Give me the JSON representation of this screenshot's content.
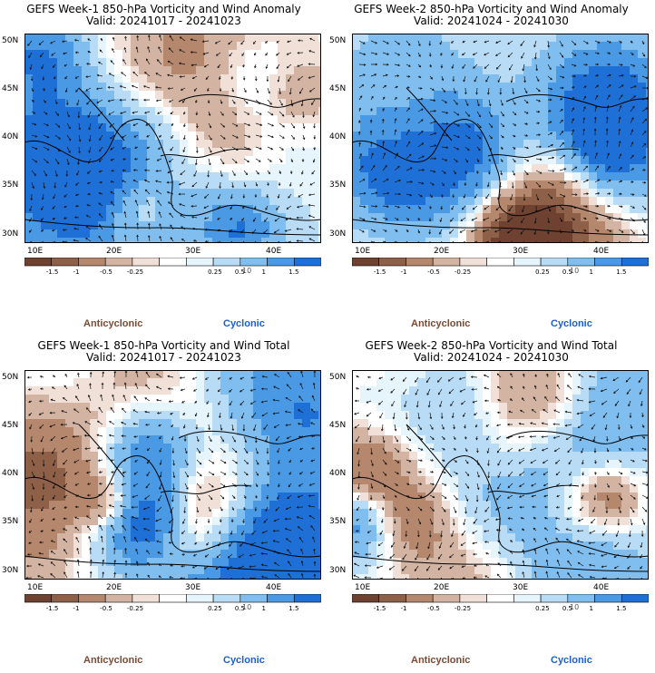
{
  "panels": [
    {
      "title": "GEFS Week-1 850-hPa Vorticity and Wind Anomaly",
      "valid": "Valid: 20241017 - 20241023",
      "seed": 11
    },
    {
      "title": "GEFS Week-2 850-hPa Vorticity and Wind Anomaly",
      "valid": "Valid: 20241024 - 20241030",
      "seed": 23
    },
    {
      "title": "GEFS Week-1 850-hPa Vorticity and Wind Total",
      "valid": "Valid: 20241017 - 20241023",
      "seed": 37
    },
    {
      "title": "GEFS Week-2 850-hPa Vorticity and Wind Total",
      "valid": "Valid: 20241024 - 20241030",
      "seed": 53
    }
  ],
  "latitude_labels": [
    "50N",
    "45N",
    "40N",
    "35N",
    "30N"
  ],
  "longitude_labels": [
    "10E",
    "20E",
    "30E",
    "40E"
  ],
  "colorbar": {
    "tick_labels": [
      "-1.5",
      "-1",
      "-0.5",
      "-0.25",
      "0.25",
      "0.5",
      "1",
      "1.5"
    ],
    "unit": "10",
    "colors": [
      "#6e4130",
      "#8f6048",
      "#b5876c",
      "#d3b3a1",
      "#f0e0d8",
      "#ffffff",
      "#e6f4fb",
      "#b8dcf5",
      "#7fbeee",
      "#4a99e4",
      "#1f70d6"
    ]
  },
  "legend": {
    "anticyclonic": "Anticyclonic",
    "cyclonic": "Cyclonic"
  }
}
